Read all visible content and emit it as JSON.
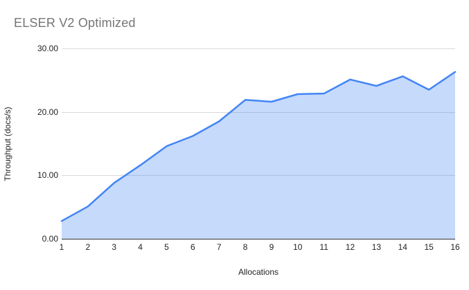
{
  "chart": {
    "title": "ELSER V2 Optimized",
    "colors": {
      "title_text": "#757575",
      "series_line": "#4285f4",
      "series_fill": "rgba(66,133,244,0.3)",
      "gridline": "#d9d9d9",
      "axis_line": "#333333",
      "tick_text": "#222222"
    }
  },
  "chart_data": {
    "type": "area",
    "title": "ELSER V2 Optimized",
    "xlabel": "Allocations",
    "ylabel": "Throughput (docs/s)",
    "x": [
      1,
      2,
      3,
      4,
      5,
      6,
      7,
      8,
      9,
      10,
      11,
      12,
      13,
      14,
      15,
      16
    ],
    "x_tick_labels": [
      "1",
      "2",
      "3",
      "4",
      "5",
      "6",
      "7",
      "8",
      "9",
      "10",
      "11",
      "12",
      "13",
      "14",
      "15",
      "16"
    ],
    "values": [
      2.8,
      5.1,
      8.8,
      11.6,
      14.6,
      16.2,
      18.5,
      21.9,
      21.6,
      22.8,
      22.9,
      25.1,
      24.1,
      25.6,
      23.5,
      26.3
    ],
    "series_name": "Throughput (docs/s)",
    "ylim": [
      0,
      30
    ],
    "y_ticks": [
      0,
      10,
      20,
      30
    ],
    "y_tick_labels": [
      "0.00",
      "10.00",
      "20.00",
      "30.00"
    ],
    "grid": "horizontal-only",
    "legend": "none"
  }
}
